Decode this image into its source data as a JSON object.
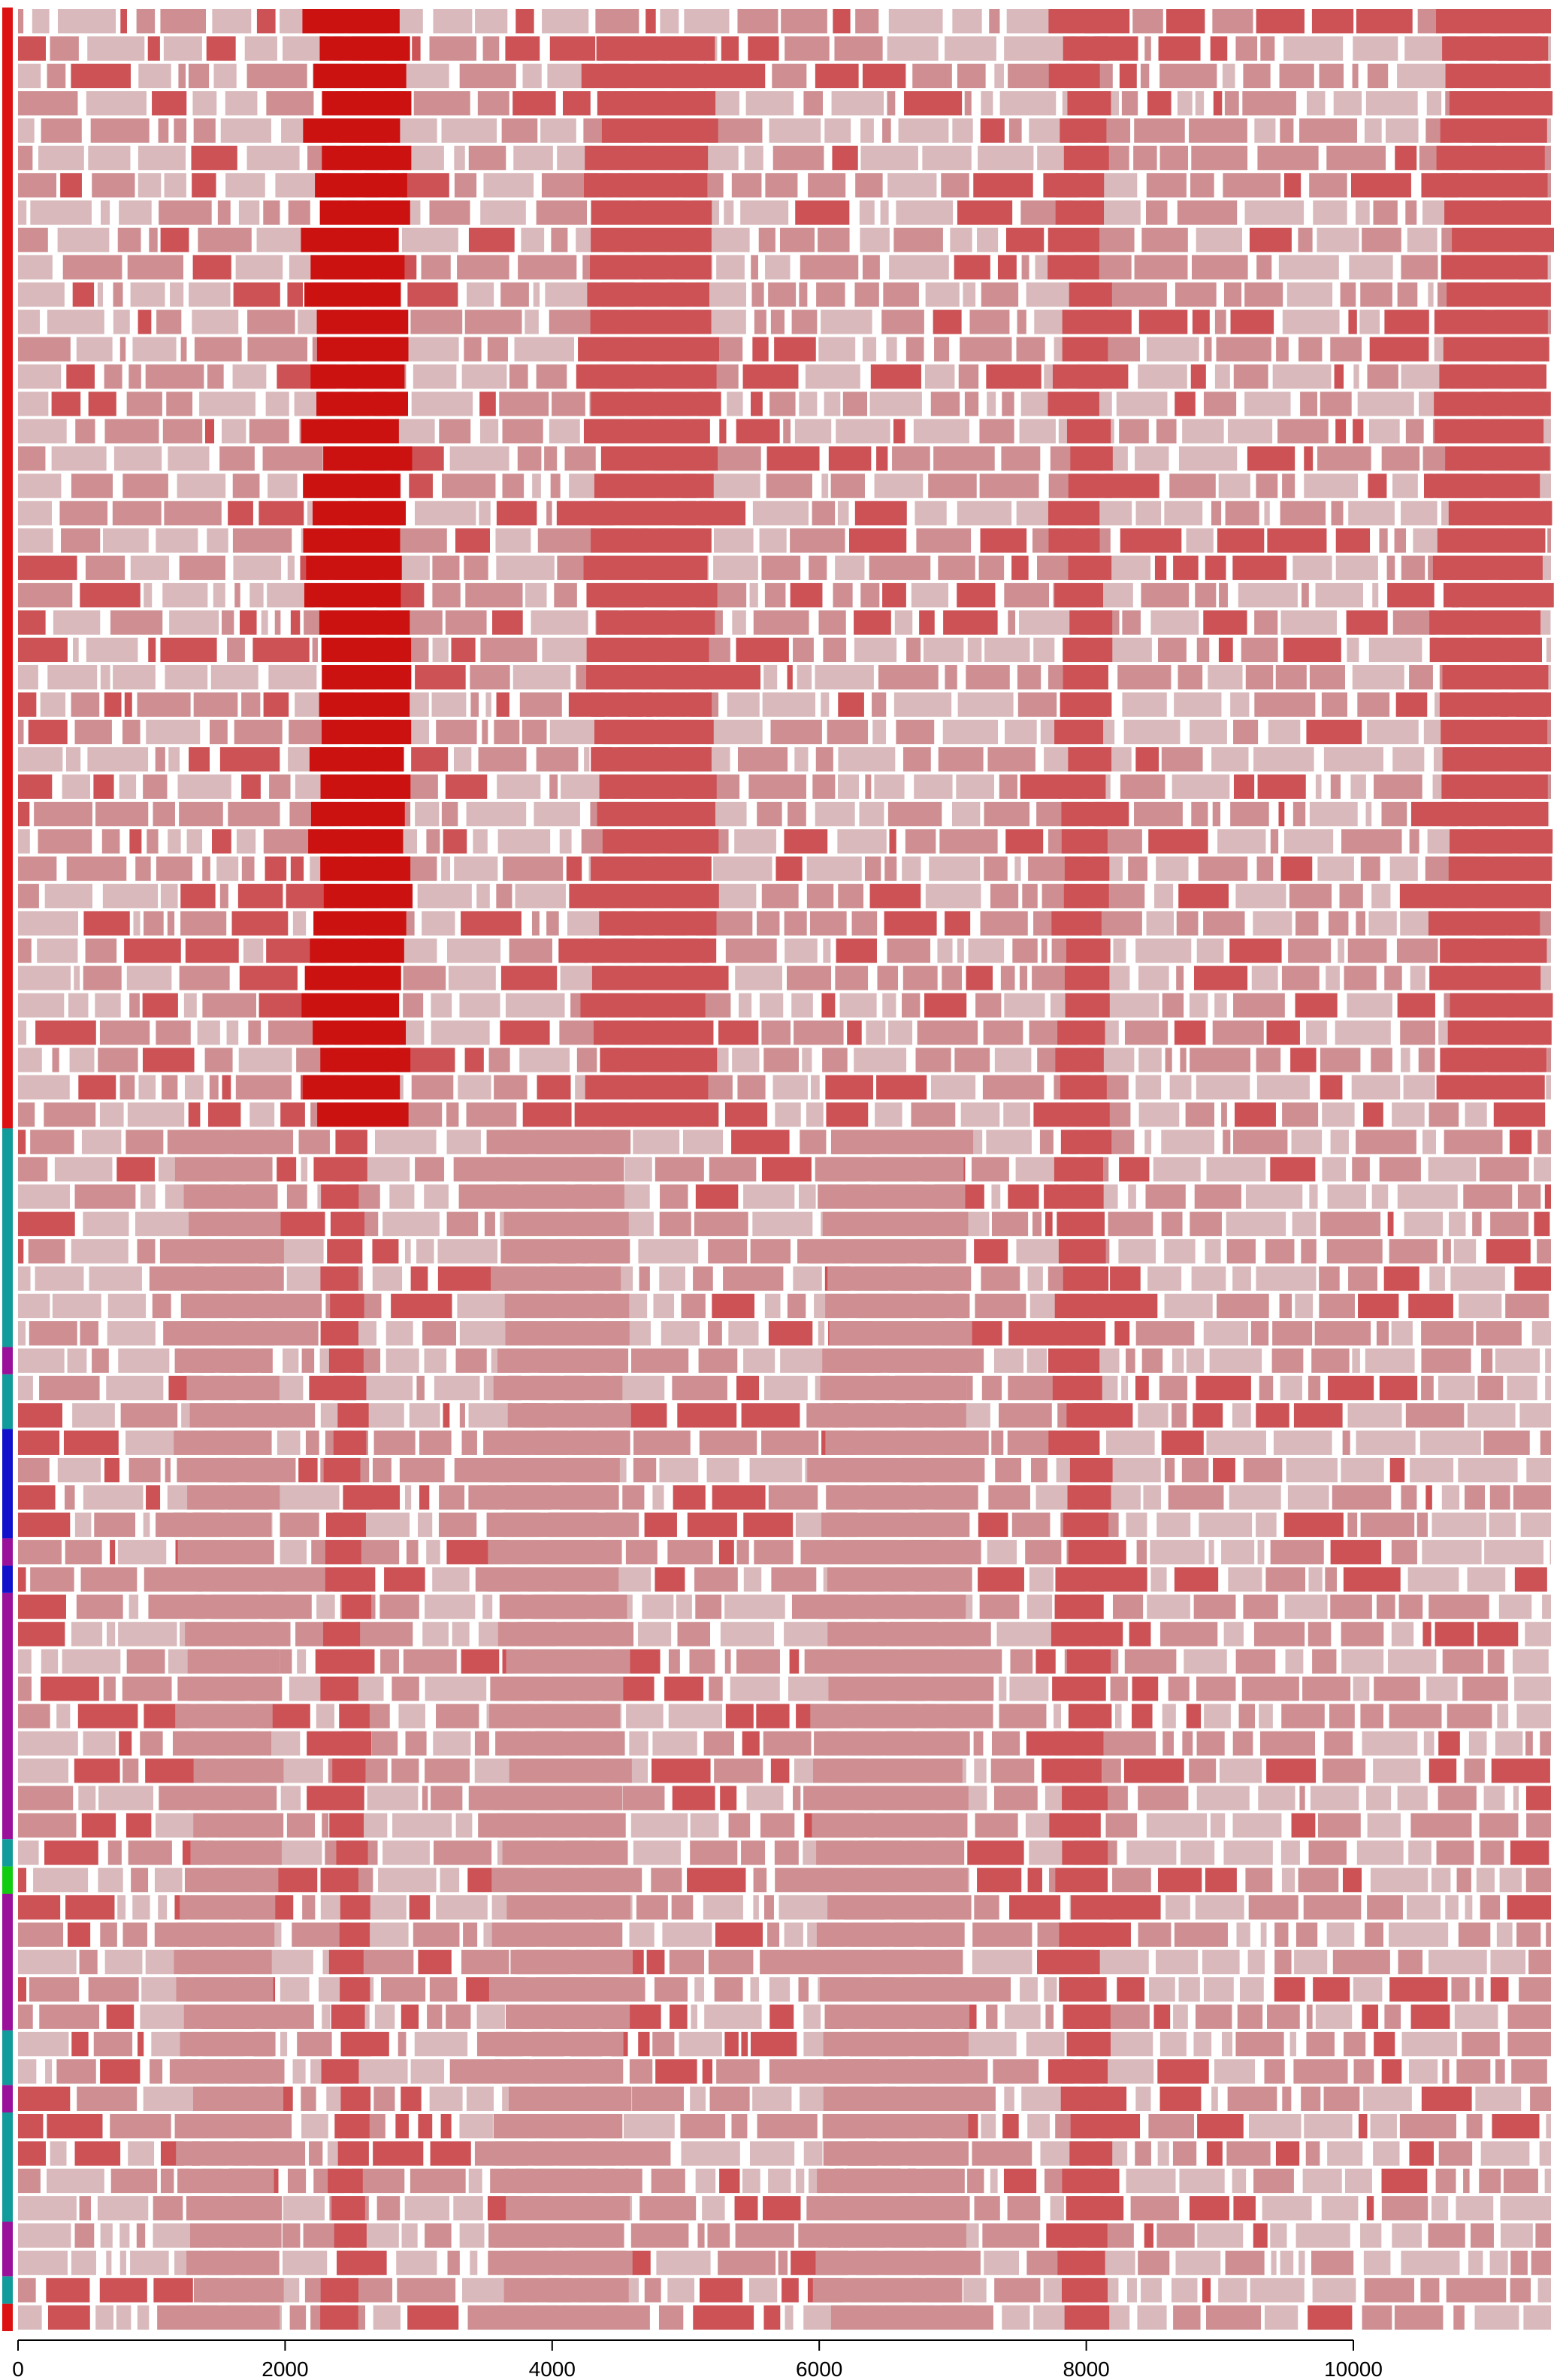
{
  "chart_data": {
    "type": "heatmap",
    "title": "",
    "xlabel": "",
    "ylabel": "",
    "xlim": [
      0,
      11480
    ],
    "x_ticks": [
      0,
      2000,
      4000,
      6000,
      8000,
      10000
    ],
    "x_tick_labels": [
      "0",
      "2000",
      "4000",
      "6000",
      "8000",
      "10000"
    ],
    "row_count": 85,
    "grid": false,
    "legend": "none",
    "colors": {
      "strong": "#cc1111",
      "medium": "#cd5256",
      "pale": "#cf8f92",
      "faint": "#d9b9bb",
      "gap": "#ffffff"
    },
    "group_colors": {
      "red": "#dd1111",
      "teal": "#129b9b",
      "purple": "#9a109a",
      "blue": "#1111cc",
      "green": "#11cc11"
    },
    "row_groups": [
      {
        "color": "red",
        "rows": 41
      },
      {
        "color": "teal",
        "rows": 8
      },
      {
        "color": "purple",
        "rows": 1
      },
      {
        "color": "teal",
        "rows": 2
      },
      {
        "color": "blue",
        "rows": 4
      },
      {
        "color": "purple",
        "rows": 1
      },
      {
        "color": "blue",
        "rows": 1
      },
      {
        "color": "purple",
        "rows": 9
      },
      {
        "color": "teal",
        "rows": 1
      },
      {
        "color": "green",
        "rows": 1
      },
      {
        "color": "purple",
        "rows": 5
      },
      {
        "color": "teal",
        "rows": 2
      },
      {
        "color": "purple",
        "rows": 1
      },
      {
        "color": "teal",
        "rows": 4
      },
      {
        "color": "purple",
        "rows": 2
      },
      {
        "color": "teal",
        "rows": 1
      },
      {
        "color": "red",
        "rows": 1
      }
    ],
    "features": [
      {
        "rows": [
          0,
          40
        ],
        "start": 2200,
        "end": 2900,
        "level": "strong"
      },
      {
        "rows": [
          41,
          84
        ],
        "start": 2350,
        "end": 2600,
        "level": "medium"
      },
      {
        "rows": [
          0,
          84
        ],
        "start": 7800,
        "end": 8150,
        "level": "medium"
      },
      {
        "rows": [
          1,
          40
        ],
        "start": 4300,
        "end": 5200,
        "level": "medium"
      },
      {
        "rows": [
          0,
          39
        ],
        "start": 10650,
        "end": 11450,
        "level": "medium"
      },
      {
        "rows": [
          41,
          84
        ],
        "start": 1250,
        "end": 1950,
        "level": "pale"
      },
      {
        "rows": [
          41,
          84
        ],
        "start": 3600,
        "end": 4550,
        "level": "pale"
      },
      {
        "rows": [
          41,
          84
        ],
        "start": 6000,
        "end": 7100,
        "level": "pale"
      }
    ]
  }
}
